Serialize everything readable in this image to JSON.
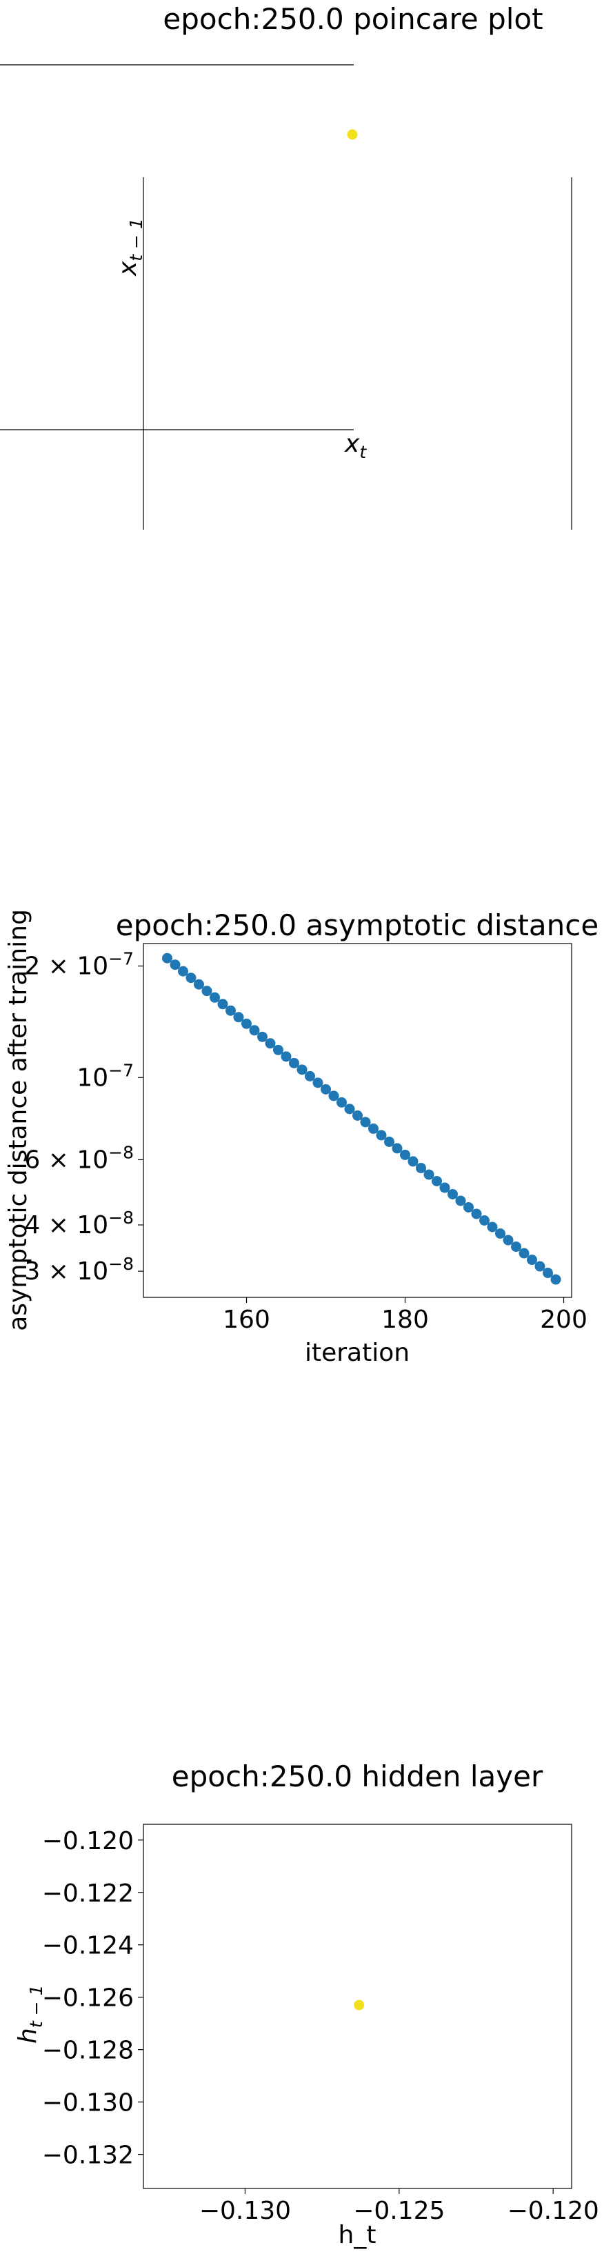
{
  "figure": {
    "background": "#ffffff"
  },
  "chart_data": [
    {
      "type": "scatter",
      "title": "epoch:250.0 poincare plot",
      "xlabel": "x",
      "xlabel_subscript": "t",
      "ylabel": "x",
      "ylabel_subscript": "t − 1",
      "axes_style": "spines moved to zero (left and bottom), right spine visible",
      "points": [
        {
          "x": null,
          "y": null,
          "color": "#f2e11a"
        }
      ],
      "grid": false,
      "legend": "none"
    },
    {
      "type": "scatter",
      "title": "epoch:250.0 asymptotic distance",
      "xlabel": "iteration",
      "ylabel": "asymptotic distance after training",
      "yscale": "log",
      "xlim": [
        147,
        201
      ],
      "ylim": [
        2.55e-08,
        2.3e-07
      ],
      "xticks": [
        {
          "value": 160,
          "label": "160"
        },
        {
          "value": 180,
          "label": "180"
        },
        {
          "value": 200,
          "label": "200"
        }
      ],
      "yticks": [
        {
          "value": 2e-07,
          "base": "2 × 10",
          "exp": "−7"
        },
        {
          "value": 1e-07,
          "base": "10",
          "exp": "−7"
        },
        {
          "value": 6e-08,
          "base": "6 × 10",
          "exp": "−8"
        },
        {
          "value": 4e-08,
          "base": "4 × 10",
          "exp": "−8"
        },
        {
          "value": 3e-08,
          "base": "3 × 10",
          "exp": "−8"
        }
      ],
      "x": [
        150,
        151,
        152,
        153,
        154,
        155,
        156,
        157,
        158,
        159,
        160,
        161,
        162,
        163,
        164,
        165,
        166,
        167,
        168,
        169,
        170,
        171,
        172,
        173,
        174,
        175,
        176,
        177,
        178,
        179,
        180,
        181,
        182,
        183,
        184,
        185,
        186,
        187,
        188,
        189,
        190,
        191,
        192,
        193,
        194,
        195,
        196,
        197,
        198,
        199
      ],
      "y_start": 2.1e-07,
      "y_end": 2.85e-08,
      "point_color": "#1f77b4",
      "grid": false,
      "legend": "none"
    },
    {
      "type": "scatter",
      "title": "epoch:250.0 hidden layer",
      "xlabel": "h_t",
      "ylabel": "h",
      "ylabel_subscript": "t − 1",
      "xlim": [
        -0.1333,
        -0.1194
      ],
      "ylim": [
        -0.1333,
        -0.1194
      ],
      "xticks": [
        {
          "value": -0.13,
          "label": "−0.130"
        },
        {
          "value": -0.125,
          "label": "−0.125"
        },
        {
          "value": -0.12,
          "label": "−0.120"
        }
      ],
      "yticks": [
        {
          "value": -0.12,
          "label": "−0.120"
        },
        {
          "value": -0.122,
          "label": "−0.122"
        },
        {
          "value": -0.124,
          "label": "−0.124"
        },
        {
          "value": -0.126,
          "label": "−0.126"
        },
        {
          "value": -0.128,
          "label": "−0.128"
        },
        {
          "value": -0.13,
          "label": "−0.130"
        },
        {
          "value": -0.132,
          "label": "−0.132"
        }
      ],
      "points": [
        {
          "x": -0.1263,
          "y": -0.1263,
          "color": "#f2e11a"
        }
      ],
      "grid": false,
      "legend": "none"
    }
  ]
}
